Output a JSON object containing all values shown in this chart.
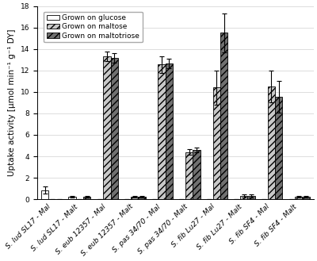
{
  "categories": [
    "S. lud SL17 - Mal",
    "S. lud SL17 - Malt",
    "S. eub 12357 - Mal",
    "S. eub 12357 - Malt",
    "S. pas 34/70 - Mal",
    "S. pas 34/70 - Malt",
    "S. fib Lu27 - Mal",
    "S. fib Lu27 - Malt",
    "S. fib SF4 - Mal",
    "S. fib SF4 - Malt"
  ],
  "glucose_values": [
    0.85,
    0.22,
    0.0,
    0.0,
    0.0,
    0.0,
    0.0,
    0.0,
    0.0,
    0.0
  ],
  "maltose_values": [
    0.0,
    0.0,
    13.3,
    0.22,
    12.55,
    4.4,
    10.4,
    0.3,
    10.5,
    0.22
  ],
  "maltotriose_values": [
    0.0,
    0.22,
    13.2,
    0.22,
    12.65,
    4.6,
    15.5,
    0.3,
    9.55,
    0.22
  ],
  "glucose_errors": [
    0.35,
    0.08,
    0.0,
    0.0,
    0.0,
    0.0,
    0.0,
    0.0,
    0.0,
    0.0
  ],
  "maltose_errors": [
    0.0,
    0.0,
    0.45,
    0.08,
    0.75,
    0.25,
    1.6,
    0.15,
    1.5,
    0.08
  ],
  "maltotriose_errors": [
    0.0,
    0.08,
    0.45,
    0.08,
    0.45,
    0.25,
    1.8,
    0.15,
    1.5,
    0.08
  ],
  "ylim": [
    0,
    18
  ],
  "yticks": [
    0,
    2,
    4,
    6,
    8,
    10,
    12,
    14,
    16,
    18
  ],
  "ylabel": "Uptake activity [μmol min⁻¹ g⁻¹ DY]",
  "legend_labels": [
    "Grown on glucose",
    "Grown on maltose",
    "Grown on maltotriose"
  ],
  "color_glucose": "#ffffff",
  "color_maltose": "#c8c8c8",
  "color_maltotriose": "#707070",
  "hatch_glucose": "",
  "hatch_maltose": "////",
  "hatch_maltotriose": "////",
  "bar_width": 0.27,
  "background_color": "#ffffff",
  "grid_color": "#d0d0d0",
  "axis_fontsize": 7.5,
  "tick_fontsize": 6.5,
  "legend_fontsize": 6.5
}
